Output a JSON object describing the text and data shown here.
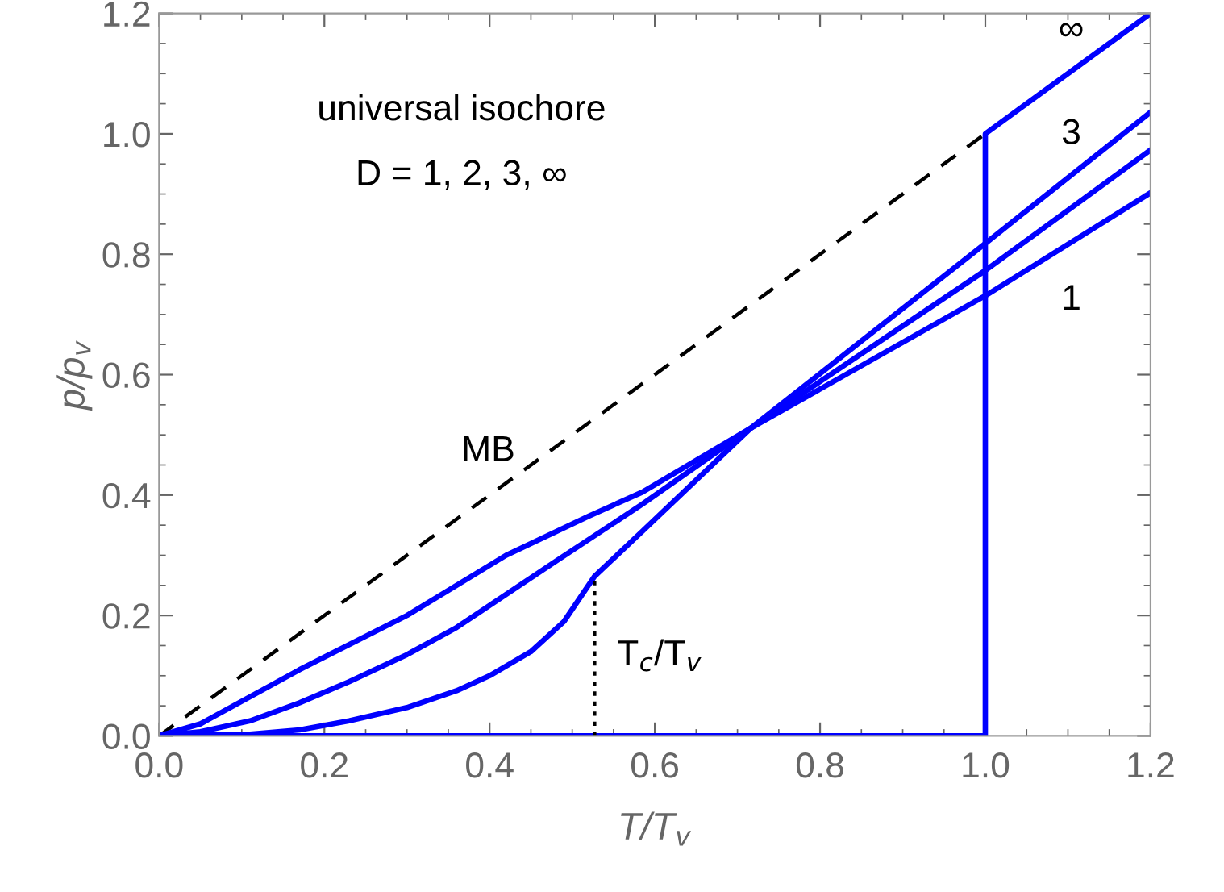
{
  "chart_data": {
    "type": "line",
    "xlabel": "T/T$_{v}$",
    "ylabel": "p/p$_{v}$",
    "xlim": [
      0,
      1.2
    ],
    "ylim": [
      0,
      1.2
    ],
    "xticks": [
      {
        "value": 0,
        "label": "0.0"
      },
      {
        "value": 0.05,
        "label": null
      },
      {
        "value": 0.1,
        "label": null
      },
      {
        "value": 0.15,
        "label": null
      },
      {
        "value": 0.2,
        "label": "0.2"
      },
      {
        "value": 0.25,
        "label": null
      },
      {
        "value": 0.3,
        "label": null
      },
      {
        "value": 0.35,
        "label": null
      },
      {
        "value": 0.4,
        "label": "0.4"
      },
      {
        "value": 0.45,
        "label": null
      },
      {
        "value": 0.5,
        "label": null
      },
      {
        "value": 0.55,
        "label": null
      },
      {
        "value": 0.6,
        "label": "0.6"
      },
      {
        "value": 0.65,
        "label": null
      },
      {
        "value": 0.7,
        "label": null
      },
      {
        "value": 0.75,
        "label": null
      },
      {
        "value": 0.8,
        "label": "0.8"
      },
      {
        "value": 0.85,
        "label": null
      },
      {
        "value": 0.9,
        "label": null
      },
      {
        "value": 0.95,
        "label": null
      },
      {
        "value": 1,
        "label": "1.0"
      },
      {
        "value": 1.05,
        "label": null
      },
      {
        "value": 1.1,
        "label": null
      },
      {
        "value": 1.15,
        "label": null
      },
      {
        "value": 1.2,
        "label": "1.2"
      }
    ],
    "yticks": [
      {
        "value": 0,
        "label": "0.0"
      },
      {
        "value": 0.05,
        "label": null
      },
      {
        "value": 0.1,
        "label": null
      },
      {
        "value": 0.15,
        "label": null
      },
      {
        "value": 0.2,
        "label": "0.2"
      },
      {
        "value": 0.25,
        "label": null
      },
      {
        "value": 0.3,
        "label": null
      },
      {
        "value": 0.35,
        "label": null
      },
      {
        "value": 0.4,
        "label": "0.4"
      },
      {
        "value": 0.45,
        "label": null
      },
      {
        "value": 0.5,
        "label": null
      },
      {
        "value": 0.55,
        "label": null
      },
      {
        "value": 0.6,
        "label": "0.6"
      },
      {
        "value": 0.65,
        "label": null
      },
      {
        "value": 0.7,
        "label": null
      },
      {
        "value": 0.75,
        "label": null
      },
      {
        "value": 0.8,
        "label": "0.8"
      },
      {
        "value": 0.85,
        "label": null
      },
      {
        "value": 0.9,
        "label": null
      },
      {
        "value": 0.95,
        "label": null
      },
      {
        "value": 1,
        "label": "1.0"
      },
      {
        "value": 1.05,
        "label": null
      },
      {
        "value": 1.1,
        "label": null
      },
      {
        "value": 1.15,
        "label": null
      },
      {
        "value": 1.2,
        "label": "1.2"
      }
    ],
    "grid": false,
    "legend": false,
    "marker": "none",
    "series": [
      {
        "name": "MB",
        "color": "#000000",
        "line_style": "dashed",
        "x": [
          0,
          1
        ],
        "values": [
          0,
          1
        ]
      },
      {
        "name": "1",
        "color": "#0000ff",
        "x": [
          0,
          0.05,
          0.17,
          0.3,
          0.42,
          0.52,
          0.585,
          0.716,
          1.0,
          1.2
        ],
        "values": [
          0,
          0.02,
          0.11,
          0.2,
          0.3,
          0.365,
          0.405,
          0.511,
          0.731,
          0.902
        ]
      },
      {
        "color": "#0000ff",
        "x": [
          0,
          0.05,
          0.11,
          0.17,
          0.23,
          0.3,
          0.36,
          0.42,
          0.48,
          0.585,
          0.716,
          1.0,
          1.2
        ],
        "values": [
          0,
          0.007,
          0.025,
          0.055,
          0.09,
          0.135,
          0.18,
          0.235,
          0.29,
          0.385,
          0.511,
          0.773,
          0.973
        ]
      },
      {
        "name": "3",
        "color": "#0000ff",
        "x": [
          0,
          0.11,
          0.17,
          0.23,
          0.3,
          0.36,
          0.4,
          0.45,
          0.49,
          0.527,
          0.585,
          0.716,
          1.0,
          1.2
        ],
        "values": [
          0,
          0.003,
          0.01,
          0.025,
          0.047,
          0.075,
          0.1,
          0.14,
          0.19,
          0.265,
          0.34,
          0.511,
          0.818,
          1.036
        ]
      },
      {
        "name": "∞",
        "color": "#0000ff",
        "x": [
          0,
          1,
          1,
          1.2
        ],
        "values": [
          0,
          0,
          1,
          1.2
        ]
      },
      {
        "name": "T$_{c}$/T$_{v}$",
        "color": "#000000",
        "line_style": "dotted",
        "x": [
          0.527,
          0.527
        ],
        "values": [
          0,
          0.265
        ]
      }
    ],
    "annotations": [
      "universal isochore",
      "D = 1, 2, 3, ∞"
    ]
  }
}
